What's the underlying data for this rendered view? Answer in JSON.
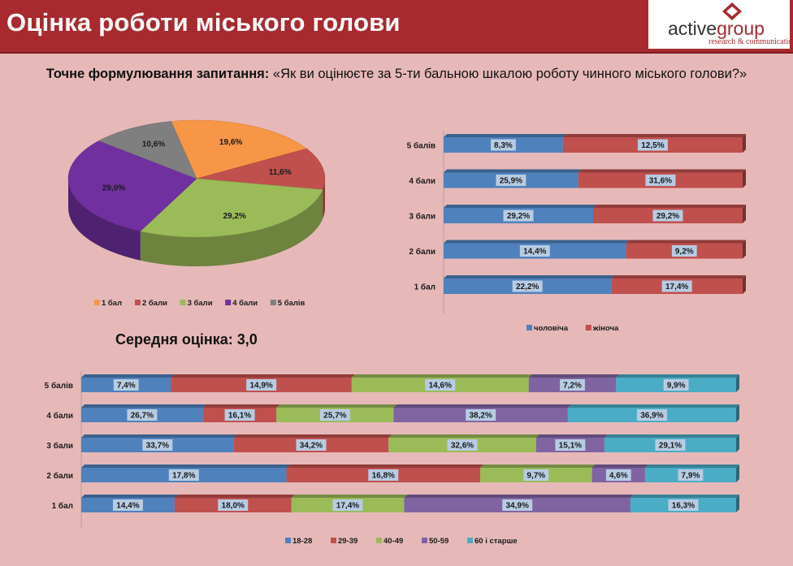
{
  "header": {
    "title": "Оцінка роботи міського голови",
    "logo": {
      "word_main": "active",
      "word_accent": "group",
      "tagline": "research & communications"
    }
  },
  "question": {
    "label": "Точне формулювання запитання:",
    "text": "«Як ви оцінюєте за 5-ти бальною шкалою роботу чинного міського голови?»"
  },
  "average": {
    "text": "Середня оцінка: 3,0"
  },
  "colors": {
    "blue": "#4f81bd",
    "red": "#c0504d",
    "green": "#9bbb59",
    "purple": "#8064a2",
    "teal": "#4bacc6",
    "orange": "#f79646",
    "violet": "#7030a0",
    "gray": "#7f7f7f",
    "label_bg": "#b7cce3"
  },
  "chart_data": [
    {
      "type": "pie",
      "categories": [
        "1 бал",
        "2 бали",
        "3 бали",
        "4 бали",
        "5 балів"
      ],
      "values": [
        19.6,
        11.6,
        29.2,
        29.0,
        10.6
      ],
      "value_labels": [
        "19,6%",
        "11,6%",
        "29,2%",
        "29,0%",
        "10,6%"
      ],
      "legend": "bottom"
    },
    {
      "type": "bar",
      "orientation": "horizontal",
      "stacked": "percent",
      "categories": [
        "5 балів",
        "4 бали",
        "3 бали",
        "2 бали",
        "1 бал"
      ],
      "series": [
        {
          "name": "чоловіча",
          "values": [
            8.3,
            25.9,
            29.2,
            14.4,
            22.2
          ],
          "labels": [
            "8,3%",
            "25,9%",
            "29,2%",
            "14,4%",
            "22,2%"
          ]
        },
        {
          "name": "жіноча",
          "values": [
            12.5,
            31.6,
            29.2,
            9.2,
            17.4
          ],
          "labels": [
            "12,5%",
            "31,6%",
            "29,2%",
            "9,2%",
            "17,4%"
          ]
        }
      ],
      "legend": "bottom"
    },
    {
      "type": "bar",
      "orientation": "horizontal",
      "stacked": "percent",
      "categories": [
        "5 балів",
        "4 бали",
        "3 бали",
        "2 бали",
        "1 бал"
      ],
      "series": [
        {
          "name": "18-28",
          "values": [
            7.4,
            26.7,
            33.7,
            17.8,
            14.4
          ],
          "labels": [
            "7,4%",
            "26,7%",
            "33,7%",
            "17,8%",
            "14,4%"
          ]
        },
        {
          "name": "29-39",
          "values": [
            14.9,
            16.1,
            34.2,
            16.8,
            18.0
          ],
          "labels": [
            "14,9%",
            "16,1%",
            "34,2%",
            "16,8%",
            "18,0%"
          ]
        },
        {
          "name": "40-49",
          "values": [
            14.6,
            25.7,
            32.6,
            9.7,
            17.4
          ],
          "labels": [
            "14,6%",
            "25,7%",
            "32,6%",
            "9,7%",
            "17,4%"
          ]
        },
        {
          "name": "50-59",
          "values": [
            7.2,
            38.2,
            15.1,
            4.6,
            34.9
          ],
          "labels": [
            "7,2%",
            "38,2%",
            "15,1%",
            "4,6%",
            "34,9%"
          ]
        },
        {
          "name": "60 і старше",
          "values": [
            9.9,
            36.9,
            29.1,
            7.9,
            16.3
          ],
          "labels": [
            "9,9%",
            "36,9%",
            "29,1%",
            "7,9%",
            "16,3%"
          ]
        }
      ],
      "legend": "bottom"
    }
  ]
}
